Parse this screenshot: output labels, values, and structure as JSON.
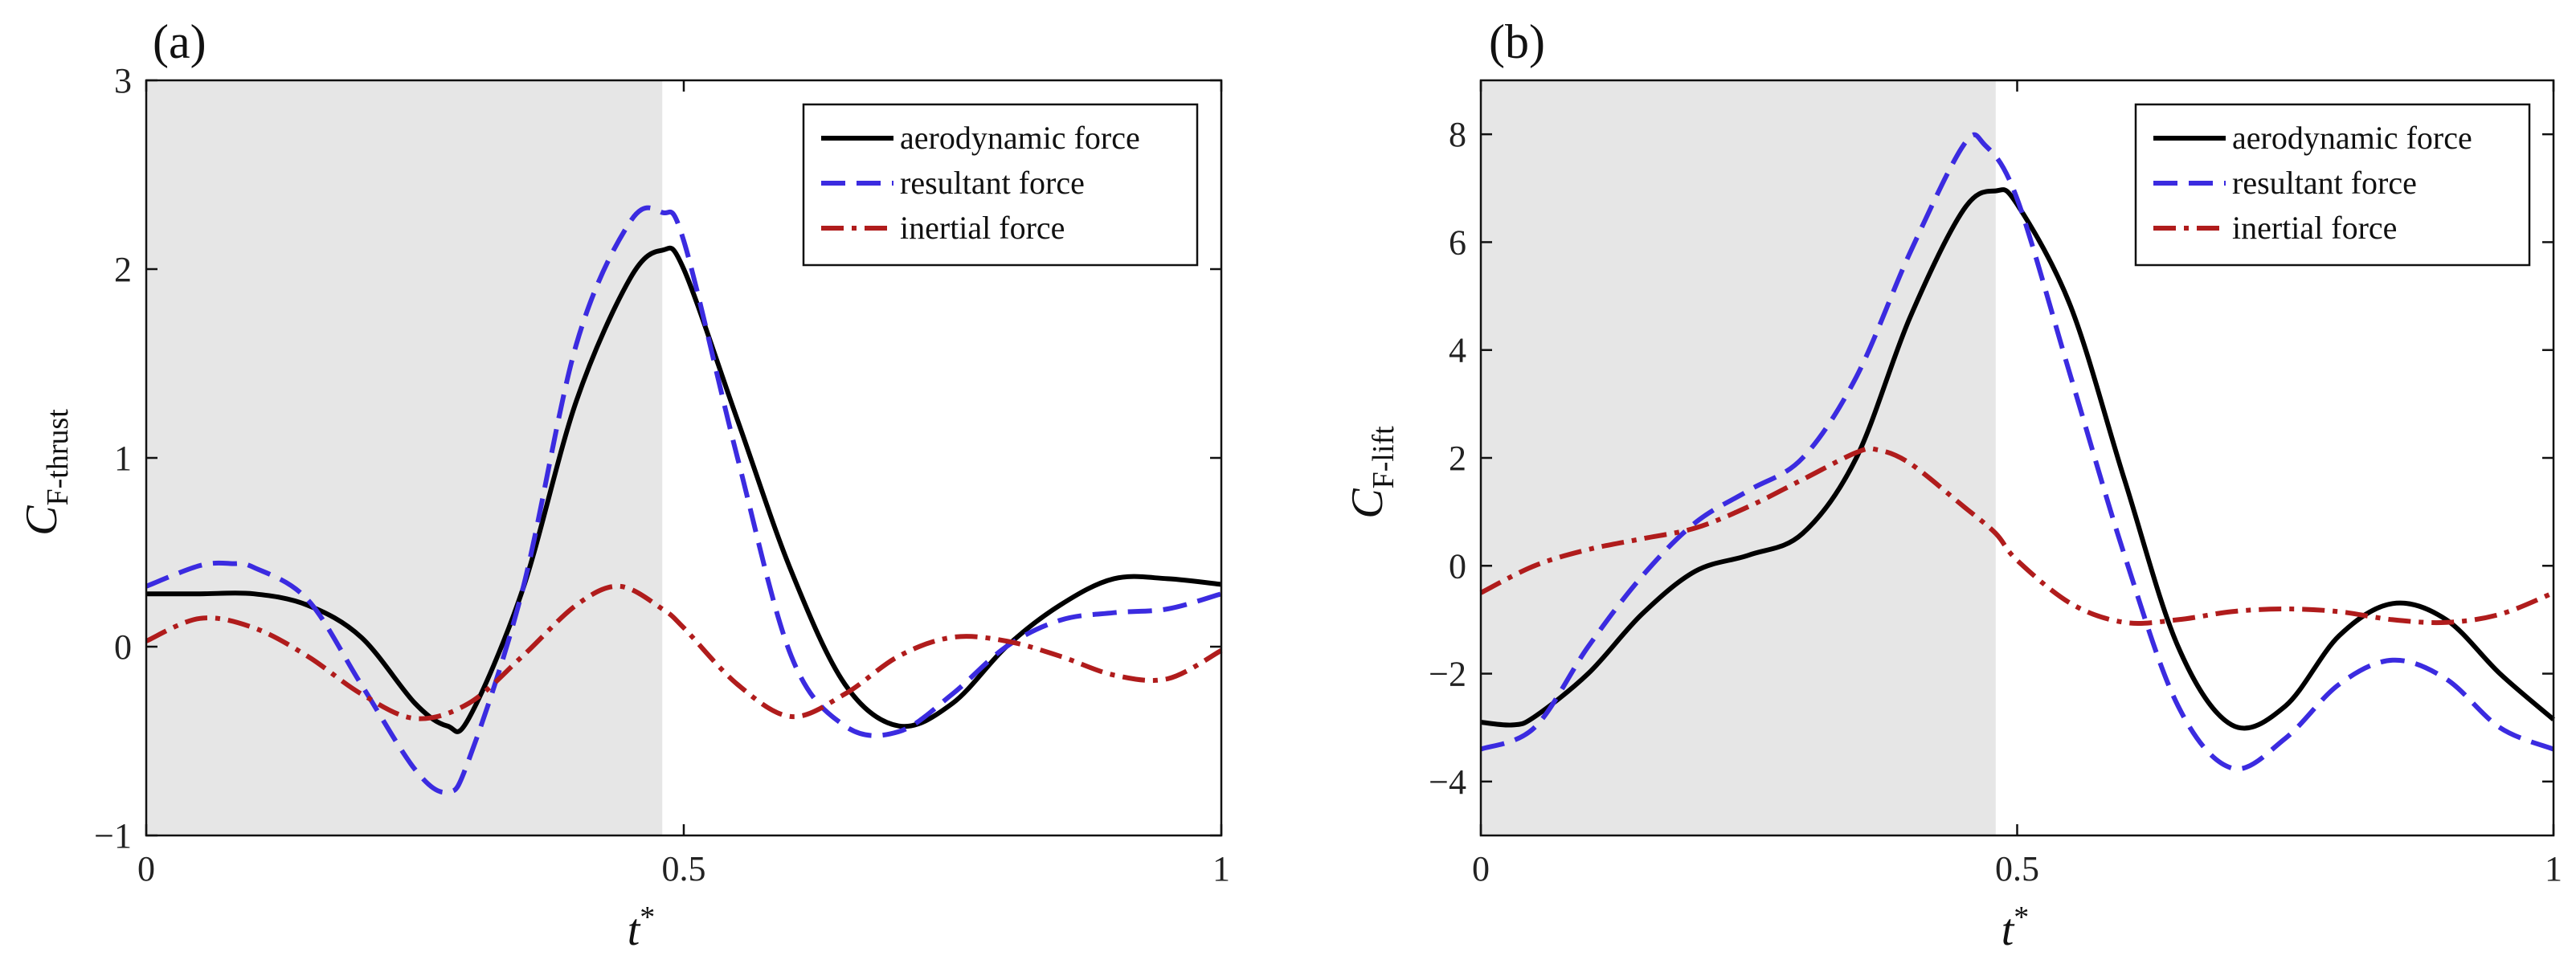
{
  "chart_data": [
    {
      "type": "line",
      "panel_label": "(a)",
      "xlabel": "t*",
      "xlabel_main": "t",
      "xlabel_sup": "*",
      "ylabel": "CF-thrust",
      "ylabel_main": "C",
      "ylabel_sub": "F-thrust",
      "xlim": [
        0,
        1
      ],
      "ylim": [
        -1,
        3
      ],
      "xticks": [
        0,
        0.5,
        1
      ],
      "xtick_labels": [
        "0",
        "0.5",
        "1"
      ],
      "yticks": [
        -1,
        0,
        1,
        2,
        3
      ],
      "ytick_labels": [
        "−1",
        "0",
        "1",
        "2",
        "3"
      ],
      "shaded_region": [
        0,
        0.48
      ],
      "shade_color": "#e6e6e6",
      "legend_position": "top-right",
      "series": [
        {
          "name": "aerodynamic force",
          "color": "#000000",
          "style": "solid",
          "x": [
            0,
            0.05,
            0.1,
            0.15,
            0.2,
            0.25,
            0.28,
            0.3,
            0.35,
            0.4,
            0.45,
            0.48,
            0.5,
            0.55,
            0.6,
            0.65,
            0.7,
            0.75,
            0.8,
            0.85,
            0.9,
            0.95,
            1.0
          ],
          "y": [
            0.28,
            0.28,
            0.28,
            0.22,
            0.05,
            -0.3,
            -0.42,
            -0.38,
            0.3,
            1.3,
            1.95,
            2.1,
            2.0,
            1.2,
            0.4,
            -0.2,
            -0.42,
            -0.3,
            0.0,
            0.22,
            0.36,
            0.36,
            0.33
          ]
        },
        {
          "name": "resultant force",
          "color": "#3b2be0",
          "style": "dashed",
          "x": [
            0,
            0.05,
            0.08,
            0.1,
            0.15,
            0.2,
            0.25,
            0.28,
            0.3,
            0.35,
            0.4,
            0.45,
            0.48,
            0.5,
            0.55,
            0.6,
            0.65,
            0.7,
            0.75,
            0.8,
            0.85,
            0.9,
            0.95,
            1.0
          ],
          "y": [
            0.32,
            0.43,
            0.44,
            0.42,
            0.25,
            -0.2,
            -0.65,
            -0.77,
            -0.6,
            0.3,
            1.6,
            2.25,
            2.3,
            2.15,
            1.0,
            -0.05,
            -0.42,
            -0.45,
            -0.25,
            0.0,
            0.14,
            0.18,
            0.2,
            0.28
          ]
        },
        {
          "name": "inertial force",
          "color": "#b01c1c",
          "style": "dashdot",
          "x": [
            0,
            0.05,
            0.1,
            0.15,
            0.2,
            0.25,
            0.3,
            0.35,
            0.4,
            0.44,
            0.48,
            0.5,
            0.55,
            0.6,
            0.65,
            0.7,
            0.75,
            0.8,
            0.85,
            0.9,
            0.95,
            1.0
          ],
          "y": [
            0.03,
            0.15,
            0.1,
            -0.05,
            -0.25,
            -0.38,
            -0.3,
            -0.05,
            0.22,
            0.32,
            0.2,
            0.1,
            -0.2,
            -0.37,
            -0.25,
            -0.05,
            0.05,
            0.03,
            -0.05,
            -0.15,
            -0.17,
            -0.02
          ]
        }
      ]
    },
    {
      "type": "line",
      "panel_label": "(b)",
      "xlabel": "t*",
      "xlabel_main": "t",
      "xlabel_sup": "*",
      "ylabel": "CF-lift",
      "ylabel_main": "C",
      "ylabel_sub": "F-lift",
      "xlim": [
        0,
        1
      ],
      "ylim": [
        -5,
        9
      ],
      "xticks": [
        0,
        0.5,
        1
      ],
      "xtick_labels": [
        "0",
        "0.5",
        "1"
      ],
      "yticks": [
        -4,
        -2,
        0,
        2,
        4,
        6,
        8
      ],
      "ytick_labels": [
        "−4",
        "−2",
        "0",
        "2",
        "4",
        "6",
        "8"
      ],
      "shaded_region": [
        0,
        0.48
      ],
      "shade_color": "#e6e6e6",
      "legend_position": "top-right",
      "series": [
        {
          "name": "aerodynamic force",
          "color": "#000000",
          "style": "solid",
          "x": [
            0,
            0.03,
            0.05,
            0.1,
            0.15,
            0.2,
            0.25,
            0.3,
            0.35,
            0.4,
            0.45,
            0.48,
            0.5,
            0.55,
            0.6,
            0.65,
            0.7,
            0.75,
            0.8,
            0.85,
            0.9,
            0.95,
            1.0
          ],
          "y": [
            -2.9,
            -2.95,
            -2.8,
            -2.0,
            -0.9,
            -0.1,
            0.2,
            0.6,
            2.0,
            4.6,
            6.6,
            6.95,
            6.7,
            4.8,
            1.6,
            -1.5,
            -2.95,
            -2.6,
            -1.3,
            -0.7,
            -1.0,
            -2.0,
            -2.85
          ]
        },
        {
          "name": "resultant force",
          "color": "#3b2be0",
          "style": "dashed",
          "x": [
            0,
            0.05,
            0.1,
            0.15,
            0.2,
            0.25,
            0.3,
            0.35,
            0.4,
            0.45,
            0.47,
            0.5,
            0.55,
            0.6,
            0.65,
            0.7,
            0.75,
            0.8,
            0.85,
            0.9,
            0.95,
            1.0
          ],
          "y": [
            -3.4,
            -3.0,
            -1.5,
            -0.2,
            0.8,
            1.4,
            2.0,
            3.5,
            5.8,
            7.8,
            7.8,
            6.8,
            3.5,
            0.2,
            -2.6,
            -3.75,
            -3.2,
            -2.2,
            -1.75,
            -2.1,
            -3.0,
            -3.4
          ]
        },
        {
          "name": "inertial force",
          "color": "#b01c1c",
          "style": "dashdot",
          "x": [
            0,
            0.05,
            0.1,
            0.15,
            0.2,
            0.25,
            0.3,
            0.35,
            0.37,
            0.4,
            0.45,
            0.48,
            0.5,
            0.55,
            0.6,
            0.65,
            0.7,
            0.75,
            0.8,
            0.85,
            0.9,
            0.95,
            1.0
          ],
          "y": [
            -0.5,
            0.0,
            0.3,
            0.5,
            0.7,
            1.1,
            1.6,
            2.1,
            2.15,
            1.9,
            1.1,
            0.6,
            0.1,
            -0.7,
            -1.05,
            -1.0,
            -0.85,
            -0.8,
            -0.85,
            -1.0,
            -1.05,
            -0.9,
            -0.5
          ]
        }
      ]
    }
  ]
}
